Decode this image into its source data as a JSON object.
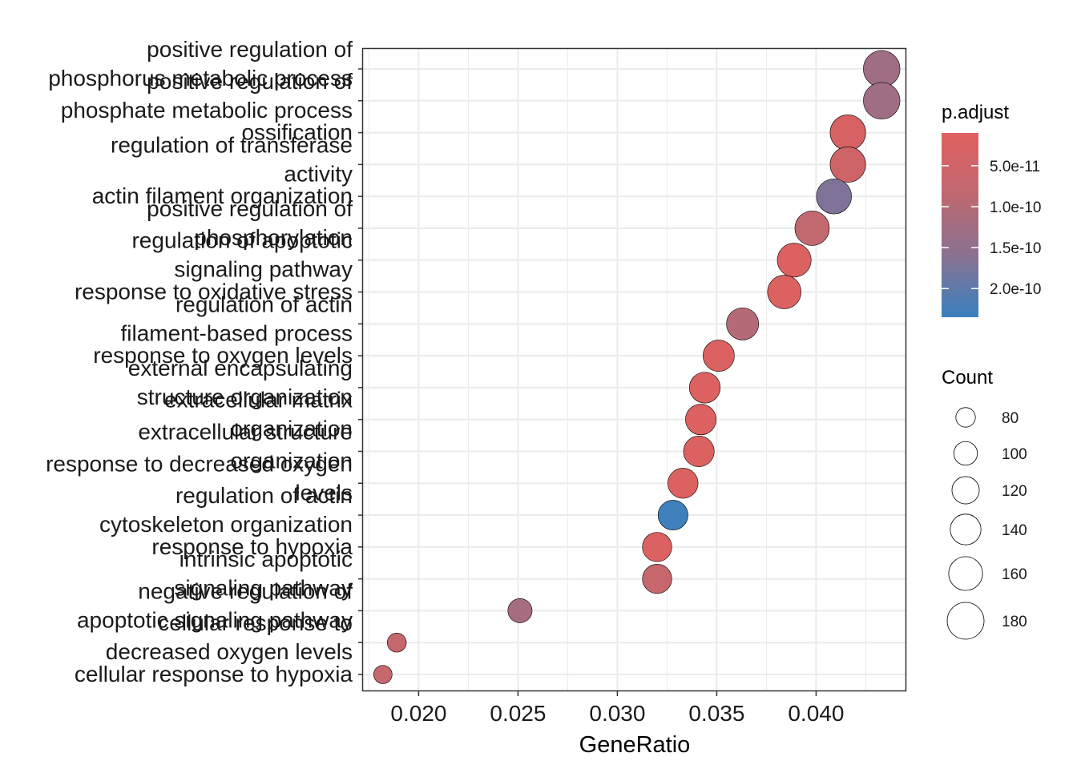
{
  "chart_data": {
    "type": "scatter",
    "title": "",
    "xlabel": "GeneRatio",
    "ylabel": "",
    "xlim": [
      0.0172,
      0.0445
    ],
    "x_ticks": [
      "0.020",
      "0.025",
      "0.030",
      "0.035",
      "0.040"
    ],
    "x_tick_values": [
      0.02,
      0.025,
      0.03,
      0.035,
      0.04
    ],
    "grid": true,
    "legend_position": "right",
    "color_legend": {
      "title": "p.adjust",
      "labels": [
        "5.0e-11",
        "1.0e-10",
        "1.5e-10",
        "2.0e-10"
      ],
      "values": [
        5e-11,
        1e-10,
        1.5e-10,
        2e-10
      ],
      "range": [
        1e-11,
        2.35e-10
      ],
      "low_color": "#E0605F",
      "high_color": "#3A80BF"
    },
    "size_legend": {
      "title": "Count",
      "labels": [
        "80",
        "100",
        "120",
        "140",
        "160",
        "180"
      ],
      "values": [
        80,
        100,
        120,
        140,
        160,
        180
      ]
    },
    "terms": [
      {
        "label": "positive regulation of\nphosphorus metabolic process",
        "gene_ratio": 0.0433,
        "count": 178,
        "p_adjust": 1.3e-10
      },
      {
        "label": "positive regulation of\nphosphate metabolic process",
        "gene_ratio": 0.0433,
        "count": 178,
        "p_adjust": 1.3e-10
      },
      {
        "label": "ossification",
        "gene_ratio": 0.0416,
        "count": 171,
        "p_adjust": 3e-11
      },
      {
        "label": "regulation of transferase\nactivity",
        "gene_ratio": 0.0416,
        "count": 171,
        "p_adjust": 5e-11
      },
      {
        "label": "actin filament organization",
        "gene_ratio": 0.0409,
        "count": 168,
        "p_adjust": 1.7e-10
      },
      {
        "label": "positive regulation of\nphosphorylation",
        "gene_ratio": 0.0398,
        "count": 164,
        "p_adjust": 8e-11
      },
      {
        "label": "regulation of apoptotic\nsignaling pathway",
        "gene_ratio": 0.0389,
        "count": 160,
        "p_adjust": 2e-11
      },
      {
        "label": "response to oxidative stress",
        "gene_ratio": 0.0384,
        "count": 158,
        "p_adjust": 2e-11
      },
      {
        "label": "regulation of actin\nfilament-based process",
        "gene_ratio": 0.0363,
        "count": 149,
        "p_adjust": 1e-10
      },
      {
        "label": "response to oxygen levels",
        "gene_ratio": 0.0351,
        "count": 144,
        "p_adjust": 2e-11
      },
      {
        "label": "external encapsulating\nstructure organization",
        "gene_ratio": 0.0344,
        "count": 141,
        "p_adjust": 2e-11
      },
      {
        "label": "extracellular matrix\norganization",
        "gene_ratio": 0.0342,
        "count": 140,
        "p_adjust": 2e-11
      },
      {
        "label": "extracellular structure\norganization",
        "gene_ratio": 0.0341,
        "count": 140,
        "p_adjust": 2e-11
      },
      {
        "label": "response to decreased oxygen\nlevels",
        "gene_ratio": 0.0333,
        "count": 137,
        "p_adjust": 2e-11
      },
      {
        "label": "regulation of actin\ncytoskeleton organization",
        "gene_ratio": 0.0328,
        "count": 135,
        "p_adjust": 2.3e-10
      },
      {
        "label": "response to hypoxia",
        "gene_ratio": 0.032,
        "count": 132,
        "p_adjust": 2e-11
      },
      {
        "label": "intrinsic apoptotic\nsignaling pathway",
        "gene_ratio": 0.032,
        "count": 132,
        "p_adjust": 7e-11
      },
      {
        "label": "negative regulation of\napoptotic signaling pathway",
        "gene_ratio": 0.0251,
        "count": 103,
        "p_adjust": 1.2e-10
      },
      {
        "label": "cellular response to\ndecreased oxygen levels",
        "gene_ratio": 0.0189,
        "count": 78,
        "p_adjust": 7e-11
      },
      {
        "label": "cellular response to hypoxia",
        "gene_ratio": 0.0182,
        "count": 75,
        "p_adjust": 7e-11
      }
    ]
  }
}
